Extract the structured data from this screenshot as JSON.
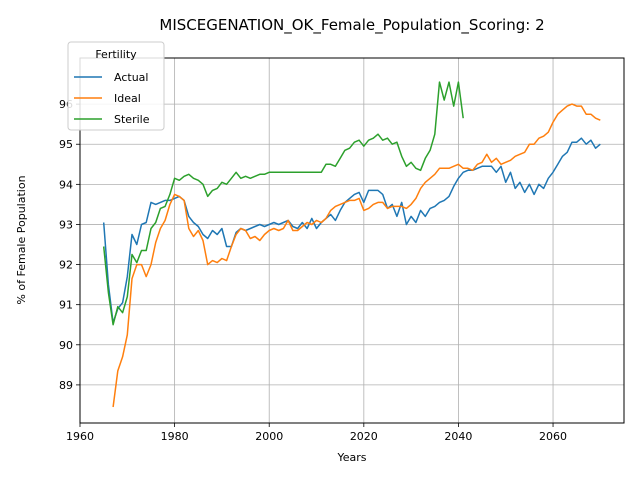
{
  "chart_data": {
    "type": "line",
    "title": "MISCEGENATION_OK_Female_Population_Scoring: 2",
    "xlabel": "Years",
    "ylabel": "% of Female Population",
    "xlim": [
      1960,
      2075
    ],
    "ylim": [
      88.05,
      97.15
    ],
    "xticks": [
      1960,
      1980,
      2000,
      2020,
      2040,
      2060
    ],
    "yticks": [
      89,
      90,
      91,
      92,
      93,
      94,
      95,
      96
    ],
    "grid": true,
    "legend": {
      "title": "Fertility",
      "position": "top-left"
    },
    "series": [
      {
        "name": "Actual",
        "color": "#1f77b4",
        "x": [
          1965,
          1966,
          1967,
          1968,
          1969,
          1970,
          1971,
          1972,
          1973,
          1974,
          1975,
          1976,
          1977,
          1978,
          1979,
          1980,
          1981,
          1982,
          1983,
          1984,
          1985,
          1986,
          1987,
          1988,
          1989,
          1990,
          1991,
          1992,
          1993,
          1994,
          1995,
          1996,
          1997,
          1998,
          1999,
          2000,
          2001,
          2002,
          2003,
          2004,
          2005,
          2006,
          2007,
          2008,
          2009,
          2010,
          2011,
          2012,
          2013,
          2014,
          2015,
          2016,
          2017,
          2018,
          2019,
          2020,
          2021,
          2022,
          2023,
          2024,
          2025,
          2026,
          2027,
          2028,
          2029,
          2030,
          2031,
          2032,
          2033,
          2034,
          2035,
          2036,
          2037,
          2038,
          2039,
          2040,
          2041,
          2042,
          2043,
          2044,
          2045,
          2046,
          2047,
          2048,
          2049,
          2050,
          2051,
          2052,
          2053,
          2054,
          2055,
          2056,
          2057,
          2058,
          2059,
          2060,
          2061,
          2062,
          2063,
          2064,
          2065,
          2066,
          2067,
          2068,
          2069,
          2070
        ],
        "values": [
          93.05,
          91.5,
          90.55,
          90.9,
          91.05,
          91.7,
          92.75,
          92.5,
          93.0,
          93.05,
          93.55,
          93.5,
          93.55,
          93.6,
          93.6,
          93.65,
          93.7,
          93.6,
          93.2,
          93.05,
          92.95,
          92.75,
          92.65,
          92.85,
          92.75,
          92.9,
          92.45,
          92.45,
          92.8,
          92.9,
          92.85,
          92.9,
          92.95,
          93.0,
          92.95,
          93.0,
          93.05,
          93.0,
          93.05,
          93.1,
          92.95,
          92.9,
          93.05,
          92.9,
          93.15,
          92.9,
          93.05,
          93.15,
          93.25,
          93.1,
          93.35,
          93.55,
          93.65,
          93.75,
          93.8,
          93.55,
          93.85,
          93.85,
          93.85,
          93.75,
          93.4,
          93.5,
          93.2,
          93.55,
          93.0,
          93.2,
          93.05,
          93.35,
          93.2,
          93.4,
          93.45,
          93.55,
          93.6,
          93.7,
          93.95,
          94.15,
          94.3,
          94.35,
          94.35,
          94.4,
          94.45,
          94.45,
          94.45,
          94.3,
          94.45,
          94.05,
          94.3,
          93.9,
          94.05,
          93.8,
          94.0,
          93.75,
          94.0,
          93.9,
          94.15,
          94.3,
          94.5,
          94.7,
          94.8,
          95.05,
          95.05,
          95.15,
          95.0,
          95.1,
          94.9,
          95.0
        ]
      },
      {
        "name": "Ideal",
        "color": "#ff7f0e",
        "x": [
          1967,
          1968,
          1969,
          1970,
          1971,
          1972,
          1973,
          1974,
          1975,
          1976,
          1977,
          1978,
          1979,
          1980,
          1981,
          1982,
          1983,
          1984,
          1985,
          1986,
          1987,
          1988,
          1989,
          1990,
          1991,
          1992,
          1993,
          1994,
          1995,
          1996,
          1997,
          1998,
          1999,
          2000,
          2001,
          2002,
          2003,
          2004,
          2005,
          2006,
          2007,
          2008,
          2009,
          2010,
          2011,
          2012,
          2013,
          2014,
          2015,
          2016,
          2017,
          2018,
          2019,
          2020,
          2021,
          2022,
          2023,
          2024,
          2025,
          2026,
          2027,
          2028,
          2029,
          2030,
          2031,
          2032,
          2033,
          2034,
          2035,
          2036,
          2037,
          2038,
          2039,
          2040,
          2041,
          2042,
          2043,
          2044,
          2045,
          2046,
          2047,
          2048,
          2049,
          2050,
          2051,
          2052,
          2053,
          2054,
          2055,
          2056,
          2057,
          2058,
          2059,
          2060,
          2061,
          2062,
          2063,
          2064,
          2065,
          2066,
          2067,
          2068,
          2069,
          2070
        ],
        "values": [
          88.45,
          89.35,
          89.7,
          90.25,
          91.65,
          92.0,
          92.0,
          91.7,
          92.0,
          92.55,
          92.9,
          93.1,
          93.5,
          93.75,
          93.7,
          93.6,
          92.9,
          92.7,
          92.85,
          92.6,
          92.0,
          92.1,
          92.05,
          92.15,
          92.1,
          92.45,
          92.75,
          92.9,
          92.85,
          92.65,
          92.7,
          92.6,
          92.75,
          92.85,
          92.9,
          92.85,
          92.9,
          93.1,
          92.85,
          92.85,
          92.95,
          93.05,
          93.0,
          93.1,
          93.05,
          93.15,
          93.35,
          93.45,
          93.5,
          93.55,
          93.6,
          93.6,
          93.65,
          93.35,
          93.4,
          93.5,
          93.55,
          93.55,
          93.4,
          93.45,
          93.45,
          93.45,
          93.4,
          93.5,
          93.65,
          93.9,
          94.05,
          94.15,
          94.25,
          94.4,
          94.4,
          94.4,
          94.45,
          94.5,
          94.4,
          94.4,
          94.35,
          94.5,
          94.55,
          94.75,
          94.55,
          94.65,
          94.5,
          94.55,
          94.6,
          94.7,
          94.75,
          94.8,
          95.0,
          95.0,
          95.15,
          95.2,
          95.3,
          95.55,
          95.75,
          95.85,
          95.95,
          96.0,
          95.95,
          95.95,
          95.75,
          95.75,
          95.65,
          95.6
        ]
      },
      {
        "name": "Sterile",
        "color": "#2ca02c",
        "x": [
          1965,
          1966,
          1967,
          1968,
          1969,
          1970,
          1971,
          1972,
          1973,
          1974,
          1975,
          1976,
          1977,
          1978,
          1979,
          1980,
          1981,
          1982,
          1983,
          1984,
          1985,
          1986,
          1987,
          1988,
          1989,
          1990,
          1991,
          1992,
          1993,
          1994,
          1995,
          1996,
          1997,
          1998,
          1999,
          2000,
          2001,
          2002,
          2003,
          2004,
          2005,
          2006,
          2007,
          2008,
          2009,
          2010,
          2011,
          2012,
          2013,
          2014,
          2015,
          2016,
          2017,
          2018,
          2019,
          2020,
          2021,
          2022,
          2023,
          2024,
          2025,
          2026,
          2027,
          2028,
          2029,
          2030,
          2031,
          2032,
          2033,
          2034,
          2035,
          2036,
          2037,
          2038,
          2039,
          2040,
          2041
        ],
        "values": [
          92.45,
          91.3,
          90.5,
          90.95,
          90.8,
          91.2,
          92.25,
          92.05,
          92.35,
          92.35,
          92.9,
          93.05,
          93.4,
          93.45,
          93.75,
          94.15,
          94.1,
          94.2,
          94.25,
          94.15,
          94.1,
          94.0,
          93.7,
          93.85,
          93.9,
          94.05,
          94.0,
          94.15,
          94.3,
          94.15,
          94.2,
          94.15,
          94.2,
          94.25,
          94.25,
          94.3,
          94.3,
          94.3,
          94.3,
          94.3,
          94.3,
          94.3,
          94.3,
          94.3,
          94.3,
          94.3,
          94.3,
          94.5,
          94.5,
          94.45,
          94.65,
          94.85,
          94.9,
          95.05,
          95.1,
          94.95,
          95.1,
          95.15,
          95.25,
          95.1,
          95.15,
          95.0,
          95.05,
          94.7,
          94.45,
          94.55,
          94.4,
          94.35,
          94.65,
          94.85,
          95.25,
          96.55,
          96.1,
          96.55,
          95.95,
          96.55,
          95.65
        ]
      }
    ]
  }
}
